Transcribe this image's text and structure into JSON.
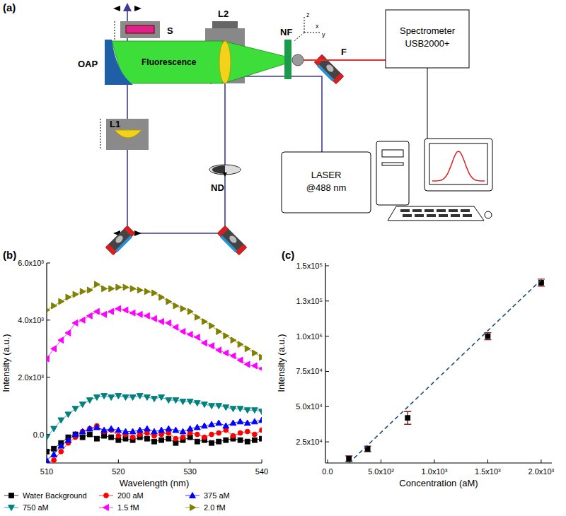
{
  "diagram": {
    "label": "(a)",
    "labels": {
      "sample": "S",
      "oap": "OAP",
      "lens1": "L1",
      "lens2": "L2",
      "notch": "NF",
      "fiber": "F",
      "beam": "Fluorescence",
      "nd": "ND",
      "spectrometer": [
        "Spectrometer",
        "USB2000+"
      ],
      "laser": [
        "LASER",
        "@488 nm"
      ],
      "axes": [
        "z",
        "x",
        "y"
      ]
    }
  },
  "chart_data": [
    {
      "type": "line",
      "title": "(b)",
      "xlabel": "Wavelength (nm)",
      "ylabel": "Intensity (a.u.)",
      "x": [
        510,
        511,
        512,
        513,
        514,
        515,
        516,
        517,
        518,
        519,
        520,
        521,
        522,
        523,
        524,
        525,
        526,
        527,
        528,
        529,
        530,
        531,
        532,
        533,
        534,
        535,
        536,
        537,
        538,
        539,
        540
      ],
      "xlim": [
        510,
        540
      ],
      "xticks": [
        510,
        520,
        530,
        540
      ],
      "ylim": [
        -1000,
        6000
      ],
      "yticks": [
        {
          "value": 0,
          "label": "0.0"
        },
        {
          "value": 2000,
          "label": "2.0x10³"
        },
        {
          "value": 4000,
          "label": "4.0x10³"
        },
        {
          "value": 6000,
          "label": "6.0x10³"
        }
      ],
      "grid": false,
      "legend": "bottom",
      "series": [
        {
          "name": "Water Background",
          "color": "#000000",
          "marker": "square",
          "values": [
            -600,
            -500,
            -300,
            -100,
            0,
            -100,
            0,
            -150,
            -50,
            -100,
            -200,
            -150,
            -200,
            -100,
            -150,
            -250,
            -200,
            -150,
            -300,
            -200,
            -100,
            -250,
            -200,
            -300,
            -250,
            -200,
            -150,
            -200,
            -250,
            -200,
            -150
          ]
        },
        {
          "name": "200 aM",
          "color": "#ff0000",
          "marker": "circle",
          "values": [
            -1000,
            -900,
            -600,
            -300,
            -100,
            100,
            200,
            300,
            100,
            150,
            -50,
            0,
            -100,
            0,
            50,
            -50,
            0,
            50,
            -150,
            -100,
            50,
            0,
            -100,
            0,
            50,
            150,
            -50,
            50,
            100,
            0,
            150
          ]
        },
        {
          "name": "375 aM",
          "color": "#0000ff",
          "marker": "triangle-up",
          "values": [
            -900,
            -700,
            -400,
            -200,
            0,
            100,
            200,
            250,
            150,
            200,
            150,
            100,
            100,
            150,
            200,
            100,
            150,
            200,
            150,
            100,
            200,
            250,
            300,
            350,
            400,
            300,
            400,
            450,
            400,
            450,
            500
          ]
        },
        {
          "name": "750 aM",
          "color": "#008080",
          "marker": "triangle-down",
          "values": [
            -100,
            200,
            500,
            700,
            900,
            1050,
            1200,
            1300,
            1350,
            1300,
            1350,
            1300,
            1300,
            1350,
            1300,
            1250,
            1300,
            1200,
            1200,
            1150,
            1150,
            1100,
            1050,
            1000,
            1000,
            950,
            900,
            900,
            850,
            850,
            800
          ]
        },
        {
          "name": "1.5 fM",
          "color": "#ff00ff",
          "marker": "triangle-left",
          "values": [
            2650,
            3000,
            3300,
            3550,
            3900,
            4000,
            4150,
            4300,
            4200,
            4300,
            4400,
            4350,
            4250,
            4200,
            4150,
            4050,
            3950,
            3900,
            3750,
            3600,
            3500,
            3400,
            3200,
            3100,
            2950,
            2850,
            2750,
            2600,
            2450,
            2400,
            2300
          ]
        },
        {
          "name": "2.0 fM",
          "color": "#808000",
          "marker": "triangle-right",
          "values": [
            4350,
            4500,
            4650,
            4800,
            4900,
            5000,
            5050,
            5250,
            5100,
            5100,
            5150,
            5150,
            5100,
            5050,
            5000,
            4950,
            4800,
            4650,
            4500,
            4400,
            4300,
            4100,
            3950,
            3800,
            3600,
            3450,
            3300,
            3150,
            3000,
            2850,
            2700
          ]
        }
      ]
    },
    {
      "type": "scatter",
      "title": "(c)",
      "xlabel": "Concentration (aM)",
      "ylabel": "Intensity (a.u.)",
      "xlim": [
        -20,
        2100
      ],
      "xticks": [
        {
          "value": 0,
          "label": "0.0"
        },
        {
          "value": 500,
          "label": "5.0x10²"
        },
        {
          "value": 1000,
          "label": "1.0x10³"
        },
        {
          "value": 1500,
          "label": "1.5x10³"
        },
        {
          "value": 2000,
          "label": "2.0x10³"
        }
      ],
      "ylim": [
        10000,
        152000
      ],
      "yticks": [
        {
          "value": 25000,
          "label": "2.5x10⁴"
        },
        {
          "value": 50000,
          "label": "5.0x10⁴"
        },
        {
          "value": 75000,
          "label": "7.5x10⁴"
        },
        {
          "value": 100000,
          "label": "1.0x10⁵"
        },
        {
          "value": 125000,
          "label": "1.3x10⁵"
        },
        {
          "value": 150000,
          "label": "1.5x10⁵"
        }
      ],
      "grid": false,
      "series": [
        {
          "type": "scatter",
          "color": "#000000",
          "marker": "square",
          "x": [
            200,
            375,
            750,
            1500,
            2000
          ],
          "values": [
            13000,
            20000,
            42000,
            100000,
            138000
          ],
          "errors": [
            2000,
            2000,
            4500,
            2500,
            2500
          ]
        },
        {
          "type": "line",
          "color": "#1f4e79",
          "line_style": "dashed",
          "x": [
            200,
            2000
          ],
          "values": [
            10000,
            140000
          ]
        }
      ]
    }
  ]
}
